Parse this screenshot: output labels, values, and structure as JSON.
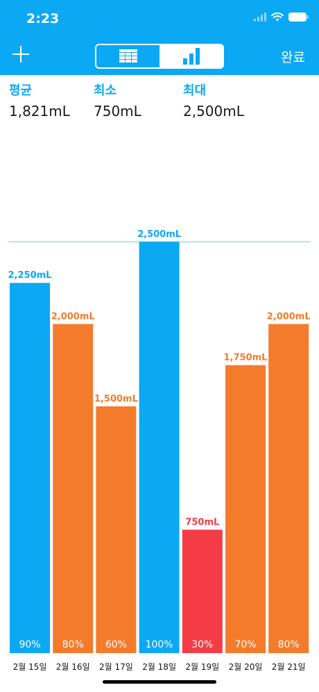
{
  "status_bar": {
    "time": "2:23"
  },
  "nav": {
    "done_label": "완료",
    "segments": [
      {
        "name": "table-view",
        "icon": "grid-table-icon",
        "selected": false
      },
      {
        "name": "chart-view",
        "icon": "bar-chart-icon",
        "selected": true
      }
    ]
  },
  "stats": {
    "average": {
      "label": "평균",
      "value": "1,821mL"
    },
    "min": {
      "label": "최소",
      "value": "750mL"
    },
    "max": {
      "label": "최대",
      "value": "2,500mL"
    }
  },
  "colors": {
    "brand": "#0ba8f4",
    "full": "#0ba8f4",
    "partial": "#f47b2b",
    "low": "#f43b46"
  },
  "chart_data": {
    "type": "bar",
    "categories": [
      "2월 15일",
      "2월 16일",
      "2월 17일",
      "2월 18일",
      "2월 19일",
      "2월 20일",
      "2월 21일"
    ],
    "values": [
      2250,
      2000,
      1500,
      2500,
      750,
      1750,
      2000
    ],
    "value_labels": [
      "2,250mL",
      "2,000mL",
      "1,500mL",
      "2,500mL",
      "750mL",
      "1,750mL",
      "2,000mL"
    ],
    "percent_labels": [
      "90%",
      "80%",
      "60%",
      "100%",
      "30%",
      "70%",
      "80%"
    ],
    "bar_colors": [
      "#0ba8f4",
      "#f47b2b",
      "#f47b2b",
      "#0ba8f4",
      "#f43b46",
      "#f47b2b",
      "#f47b2b"
    ],
    "ylim": [
      0,
      2500
    ],
    "goal_line": 2500
  }
}
